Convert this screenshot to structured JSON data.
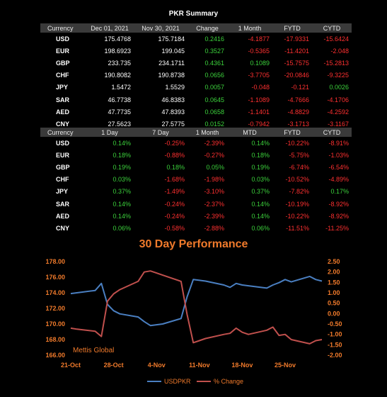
{
  "summary_title": "PKR Summary",
  "table1": {
    "headers": [
      "Currency",
      "Dec 01, 2021",
      "Nov 30, 2021",
      "Change",
      "1 Month",
      "FYTD",
      "CYTD"
    ],
    "rows": [
      {
        "cur": "USD",
        "v": [
          "175.4768",
          "175.7184",
          "0.2416",
          "-4.1877",
          "-17.9331",
          "-15.6424"
        ]
      },
      {
        "cur": "EUR",
        "v": [
          "198.6923",
          "199.045",
          "0.3527",
          "-0.5365",
          "-11.4201",
          "-2.048"
        ]
      },
      {
        "cur": "GBP",
        "v": [
          "233.735",
          "234.1711",
          "0.4361",
          "0.1089",
          "-15.7575",
          "-15.2813"
        ]
      },
      {
        "cur": "CHF",
        "v": [
          "190.8082",
          "190.8738",
          "0.0656",
          "-3.7705",
          "-20.0846",
          "-9.3225"
        ]
      },
      {
        "cur": "JPY",
        "v": [
          "1.5472",
          "1.5529",
          "0.0057",
          "-0.048",
          "-0.121",
          "0.0026"
        ]
      },
      {
        "cur": "SAR",
        "v": [
          "46.7738",
          "46.8383",
          "0.0645",
          "-1.1089",
          "-4.7666",
          "-4.1706"
        ]
      },
      {
        "cur": "AED",
        "v": [
          "47.7735",
          "47.8393",
          "0.0658",
          "-1.1401",
          "-4.8829",
          "-4.2592"
        ]
      },
      {
        "cur": "CNY",
        "v": [
          "27.5623",
          "27.5775",
          "0.0152",
          "-0.7942",
          "-3.1713",
          "-3.1167"
        ]
      }
    ]
  },
  "table2": {
    "headers": [
      "Currency",
      "1 Day",
      "7 Day",
      "1 Month",
      "MTD",
      "FYTD",
      "CYTD"
    ],
    "rows": [
      {
        "cur": "USD",
        "v": [
          "0.14%",
          "-0.25%",
          "-2.39%",
          "0.14%",
          "-10.22%",
          "-8.91%"
        ]
      },
      {
        "cur": "EUR",
        "v": [
          "0.18%",
          "-0.88%",
          "-0.27%",
          "0.18%",
          "-5.75%",
          "-1.03%"
        ]
      },
      {
        "cur": "GBP",
        "v": [
          "0.19%",
          "0.18%",
          "0.05%",
          "0.19%",
          "-6.74%",
          "-6.54%"
        ]
      },
      {
        "cur": "CHF",
        "v": [
          "0.03%",
          "-1.68%",
          "-1.98%",
          "0.03%",
          "-10.52%",
          "-4.89%"
        ]
      },
      {
        "cur": "JPY",
        "v": [
          "0.37%",
          "-1.49%",
          "-3.10%",
          "0.37%",
          "-7.82%",
          "0.17%"
        ]
      },
      {
        "cur": "SAR",
        "v": [
          "0.14%",
          "-0.24%",
          "-2.37%",
          "0.14%",
          "-10.19%",
          "-8.92%"
        ]
      },
      {
        "cur": "AED",
        "v": [
          "0.14%",
          "-0.24%",
          "-2.39%",
          "0.14%",
          "-10.22%",
          "-8.92%"
        ]
      },
      {
        "cur": "CNY",
        "v": [
          "0.06%",
          "-0.58%",
          "-2.88%",
          "0.06%",
          "-11.51%",
          "-11.25%"
        ]
      }
    ]
  },
  "colors": {
    "positive": "#3bd13b",
    "negative": "#ff3030",
    "accent": "#f07a2b",
    "series_usdpkr": "#4a7fc1",
    "series_change": "#c0504d"
  },
  "chart_data": {
    "type": "line",
    "title": "30 Day Performance",
    "watermark": "Mettis Global",
    "x_tick_labels": [
      "21-Oct",
      "28-Oct",
      "4-Nov",
      "11-Nov",
      "18-Nov",
      "25-Nov"
    ],
    "y_left_ticks": [
      "178.00",
      "176.00",
      "174.00",
      "172.00",
      "170.00",
      "168.00",
      "166.00"
    ],
    "y_right_ticks": [
      "2.50",
      "2.00",
      "1.50",
      "1.00",
      "0.50",
      "0.00",
      "-0.50",
      "-1.00",
      "-1.50",
      "-2.00"
    ],
    "ylim_left": [
      166,
      178
    ],
    "ylim_right": [
      -2,
      2.5
    ],
    "x": [
      "2021-10-21",
      "2021-10-22",
      "2021-10-25",
      "2021-10-26",
      "2021-10-27",
      "2021-10-28",
      "2021-10-29",
      "2021-11-01",
      "2021-11-02",
      "2021-11-03",
      "2021-11-04",
      "2021-11-05",
      "2021-11-08",
      "2021-11-09",
      "2021-11-10",
      "2021-11-11",
      "2021-11-12",
      "2021-11-15",
      "2021-11-16",
      "2021-11-17",
      "2021-11-18",
      "2021-11-19",
      "2021-11-22",
      "2021-11-23",
      "2021-11-24",
      "2021-11-25",
      "2021-11-26",
      "2021-11-29",
      "2021-11-30",
      "2021-12-01"
    ],
    "series": [
      {
        "name": "USDPKR",
        "axis": "left",
        "values": [
          173.9,
          174.0,
          174.3,
          175.2,
          172.5,
          171.7,
          171.3,
          170.9,
          170.3,
          169.8,
          169.9,
          170.0,
          170.7,
          173.5,
          175.7,
          175.6,
          175.5,
          175.0,
          174.7,
          175.2,
          175.0,
          174.9,
          174.6,
          175.0,
          175.3,
          175.7,
          175.4,
          176.1,
          175.7,
          175.5
        ]
      },
      {
        "name": "% Change",
        "axis": "right",
        "values": [
          -0.7,
          -0.75,
          -0.85,
          -1.1,
          0.6,
          0.95,
          1.15,
          1.55,
          2.0,
          2.05,
          1.95,
          1.85,
          1.55,
          -0.05,
          -1.4,
          -1.3,
          -1.2,
          -1.0,
          -0.95,
          -0.7,
          -0.9,
          -1.0,
          -0.8,
          -0.65,
          -1.05,
          -1.0,
          -1.25,
          -1.45,
          -1.3,
          -1.25
        ]
      }
    ],
    "legend": [
      "USDPKR",
      "% Change"
    ],
    "legend_position": "bottom"
  }
}
